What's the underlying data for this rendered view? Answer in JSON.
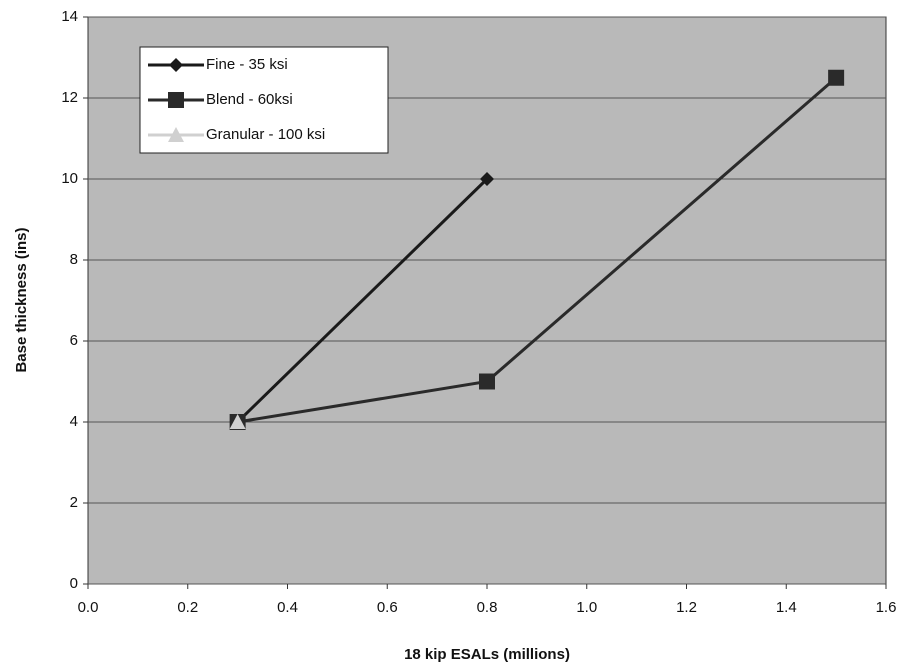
{
  "chart_data": {
    "type": "line",
    "x_label": "18 kip ESALs (millions)",
    "y_label": "Base thickness (ins)",
    "series": [
      {
        "name": "Fine - 35 ksi",
        "color": "#1a1a1a",
        "marker": "diamond",
        "x": [
          0.3,
          0.8
        ],
        "values": [
          4,
          10
        ]
      },
      {
        "name": "Blend - 60ksi",
        "color": "#2a2a2a",
        "marker": "square",
        "x": [
          0.3,
          0.8,
          1.5
        ],
        "values": [
          4,
          5,
          12.5
        ]
      },
      {
        "name": "Granular - 100 ksi",
        "color": "#d0d0d0",
        "marker": "triangle",
        "x": [
          0.3
        ],
        "values": [
          4
        ]
      }
    ],
    "xlim": [
      0,
      1.6
    ],
    "xticks": [
      {
        "value": 0,
        "label": "0.0"
      },
      0.2,
      0.4,
      0.6,
      0.8,
      {
        "value": 1,
        "label": "1.0"
      },
      1.2,
      1.4,
      1.6
    ],
    "ylim": [
      0,
      14
    ],
    "yticks": [
      0,
      2,
      4,
      6,
      8,
      10,
      12,
      14
    ],
    "grid": true,
    "legend": "top-left"
  }
}
